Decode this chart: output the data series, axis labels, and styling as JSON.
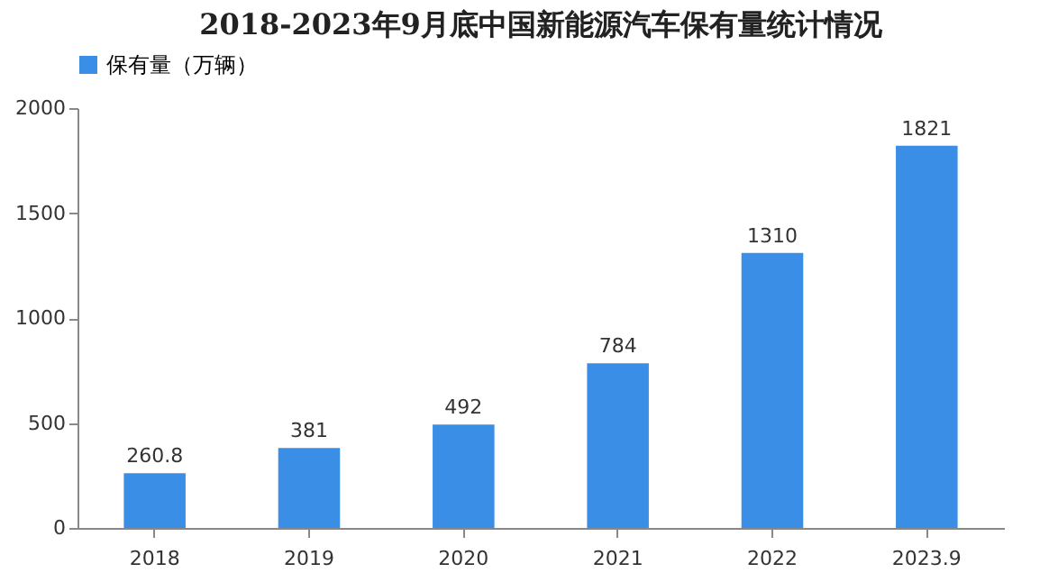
{
  "chart_data": {
    "type": "bar",
    "title": "2018-2023年9月底中国新能源汽车保有量统计情况",
    "categories": [
      "2018",
      "2019",
      "2020",
      "2021",
      "2022",
      "2023.9"
    ],
    "series": [
      {
        "name": "保有量（万辆）",
        "color": "#3a8ee6",
        "values": [
          260.8,
          381,
          492,
          784,
          1310,
          1821
        ]
      }
    ],
    "ylim": [
      0,
      2000
    ],
    "yticks": [
      0,
      500,
      1000,
      1500,
      2000
    ],
    "grid": false,
    "legend": "top",
    "data_labels": true
  }
}
